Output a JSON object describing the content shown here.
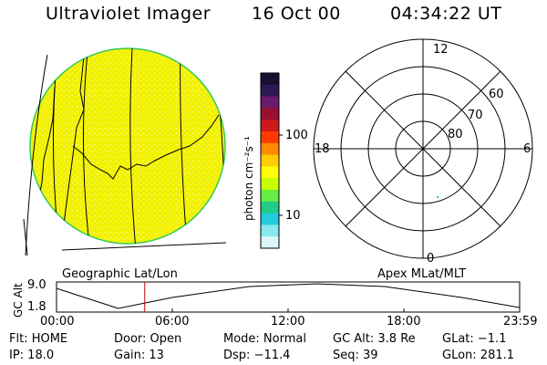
{
  "header": {
    "instrument": "Ultraviolet Imager",
    "date": "16 Oct 00",
    "time": "04:34:22 UT"
  },
  "colorbar": {
    "label": "photon cm⁻²s⁻¹",
    "scale": "log",
    "ticks": [
      "100",
      "10"
    ],
    "colors": [
      "#1a1030",
      "#2d1a55",
      "#6a1a6a",
      "#9a1030",
      "#cc1a1a",
      "#ff3a00",
      "#ff8a00",
      "#ffcc00",
      "#ffff00",
      "#c8ff00",
      "#66ee44",
      "#22cc88",
      "#22ccdd",
      "#88e8f0",
      "#ddf6fa"
    ]
  },
  "polar_plot": {
    "labels": {
      "top": "12",
      "bottom": "0",
      "left": "18",
      "right": "6"
    },
    "lat_labels": [
      "60",
      "70",
      "80"
    ]
  },
  "timeline": {
    "left_label": "Geographic Lat/Lon",
    "right_label": "Apex MLat/MLT",
    "axis_title": "GC Alt",
    "y_ticks": [
      "9.0",
      "1.8"
    ],
    "x_ticks": [
      "00:00",
      "06:00",
      "12:00",
      "18:00",
      "23:59"
    ],
    "current_time_hours": 4.57
  },
  "info": {
    "flt": "Flt: HOME",
    "ip": "IP: 18.0",
    "door": "Door: Open",
    "gain": "Gain: 13",
    "mode": "Mode: Normal",
    "dsp": "Dsp:  −11.4",
    "gcalt": "GC Alt: 3.8 Re",
    "seq": "Seq: 39",
    "glat": "GLat:  −1.1",
    "glon": "GLon: 281.1"
  },
  "colors": {
    "disk": "#f2f200",
    "disk_edge": "#33cc55",
    "marker": "#cc0000"
  }
}
